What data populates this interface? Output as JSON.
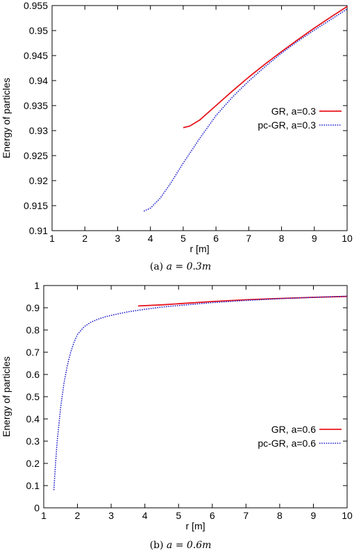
{
  "chart_data": [
    {
      "type": "line",
      "caption_prefix": "(a) ",
      "caption_math": "a = 0.3m",
      "xlabel": "r [m]",
      "ylabel": "Energy of particles",
      "xlim": [
        1,
        10
      ],
      "ylim": [
        0.91,
        0.955
      ],
      "xticks": [
        "1",
        "2",
        "3",
        "4",
        "5",
        "6",
        "7",
        "8",
        "9",
        "10"
      ],
      "yticks": [
        "0.91",
        "0.915",
        "0.92",
        "0.925",
        "0.93",
        "0.935",
        "0.94",
        "0.945",
        "0.95",
        "0.955"
      ],
      "legend_position": "right, middle",
      "series": [
        {
          "name": "GR, a=0.3",
          "color": "#e8141c",
          "style": "solid",
          "x": [
            5.0,
            5.2,
            5.5,
            6.0,
            6.5,
            7.0,
            7.5,
            8.0,
            8.5,
            9.0,
            9.5,
            10.0
          ],
          "y": [
            0.9306,
            0.9309,
            0.9321,
            0.935,
            0.9379,
            0.9407,
            0.9433,
            0.9458,
            0.9482,
            0.9505,
            0.9527,
            0.9548
          ]
        },
        {
          "name": "pc-GR, a=0.3",
          "color": "#2222cc",
          "style": "dotted",
          "x": [
            3.8,
            4.0,
            4.3,
            4.6,
            5.0,
            5.5,
            6.0,
            6.5,
            7.0,
            7.5,
            8.0,
            8.5,
            9.0,
            9.5,
            10.0
          ],
          "y": [
            0.9139,
            0.9145,
            0.9165,
            0.9193,
            0.9235,
            0.9284,
            0.933,
            0.9367,
            0.9399,
            0.9428,
            0.9455,
            0.9479,
            0.9501,
            0.9522,
            0.9543
          ]
        }
      ]
    },
    {
      "type": "line",
      "caption_prefix": "(b) ",
      "caption_math": "a = 0.6m",
      "xlabel": "r [m]",
      "ylabel": "Energy of particles",
      "xlim": [
        1,
        10
      ],
      "ylim": [
        0,
        1
      ],
      "xticks": [
        "1",
        "2",
        "3",
        "4",
        "5",
        "6",
        "7",
        "8",
        "9",
        "10"
      ],
      "yticks": [
        "0",
        "0.1",
        "0.2",
        "0.3",
        "0.4",
        "0.5",
        "0.6",
        "0.7",
        "0.8",
        "0.9",
        "1"
      ],
      "legend_position": "right, middle",
      "series": [
        {
          "name": "GR, a=0.6",
          "color": "#e8141c",
          "style": "solid",
          "x": [
            3.8,
            4.5,
            5.0,
            6.0,
            7.0,
            8.0,
            9.0,
            10.0
          ],
          "y": [
            0.908,
            0.913,
            0.918,
            0.928,
            0.936,
            0.942,
            0.947,
            0.951
          ]
        },
        {
          "name": "pc-GR, a=0.6",
          "color": "#2222cc",
          "style": "dotted",
          "x": [
            1.3,
            1.35,
            1.4,
            1.5,
            1.6,
            1.7,
            1.8,
            1.9,
            2.0,
            2.2,
            2.4,
            2.6,
            2.8,
            3.0,
            3.5,
            4.0,
            4.5,
            5.0,
            6.0,
            7.0,
            8.0,
            9.0,
            10.0
          ],
          "y": [
            0.08,
            0.2,
            0.3,
            0.45,
            0.56,
            0.64,
            0.7,
            0.745,
            0.78,
            0.815,
            0.835,
            0.848,
            0.858,
            0.866,
            0.882,
            0.893,
            0.903,
            0.91,
            0.923,
            0.933,
            0.941,
            0.947,
            0.952
          ]
        }
      ]
    }
  ]
}
